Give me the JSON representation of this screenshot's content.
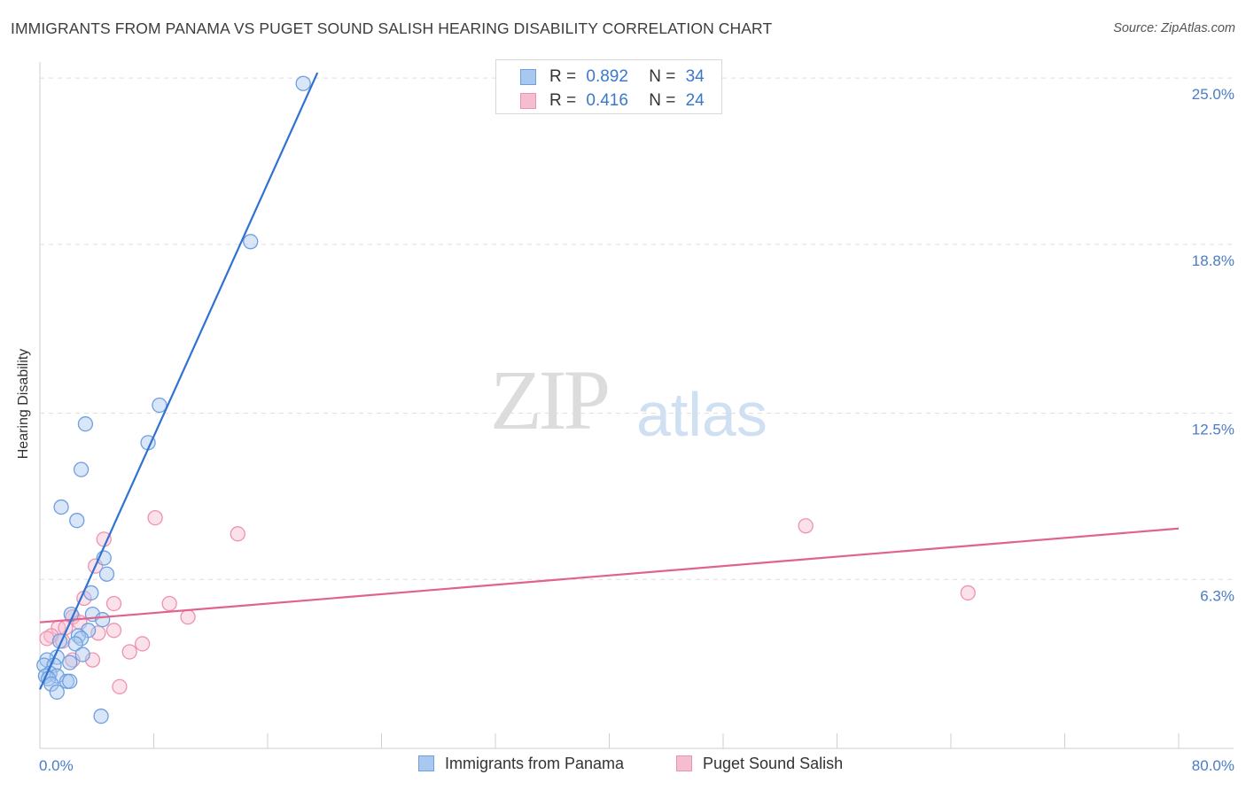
{
  "header": {
    "title": "IMMIGRANTS FROM PANAMA VS PUGET SOUND SALISH HEARING DISABILITY CORRELATION CHART",
    "source": "Source: ZipAtlas.com"
  },
  "watermark": {
    "zip": "ZIP",
    "atlas": "atlas"
  },
  "legend": {
    "rows": [
      {
        "r_label": "R =",
        "r_value": "0.892",
        "n_label": "N =",
        "n_value": "34"
      },
      {
        "r_label": "R =",
        "r_value": "0.416",
        "n_label": "N =",
        "n_value": "24"
      }
    ]
  },
  "colors": {
    "series1_fill": "#a9c8f0",
    "series1_stroke": "#6f9fe0",
    "series1_line": "#2f72d0",
    "series2_fill": "#f6bdd0",
    "series2_stroke": "#ee92b2",
    "series2_line": "#e2628e",
    "tick_text": "#4a7cc7"
  },
  "chart_data": {
    "type": "scatter",
    "title": "IMMIGRANTS FROM PANAMA VS PUGET SOUND SALISH HEARING DISABILITY CORRELATION CHART",
    "xlabel": "",
    "ylabel": "Hearing Disability",
    "xlim": [
      0,
      80
    ],
    "ylim": [
      0,
      25.6
    ],
    "x_tick_labels": [
      "0.0%",
      "80.0%"
    ],
    "y_ticks": [
      6.3,
      12.5,
      18.8,
      25.0
    ],
    "y_tick_labels": [
      "6.3%",
      "12.5%",
      "18.8%",
      "25.0%"
    ],
    "grid": "horizontal dashed",
    "legend_position": "top-center",
    "series": [
      {
        "name": "Immigrants from Panama",
        "r": 0.892,
        "n": 34,
        "trend": {
          "x": [
            0,
            19.5
          ],
          "y": [
            2.2,
            25.2
          ]
        },
        "points": [
          [
            18.5,
            24.8
          ],
          [
            14.8,
            18.9
          ],
          [
            8.4,
            12.8
          ],
          [
            7.6,
            11.4
          ],
          [
            3.2,
            12.1
          ],
          [
            2.9,
            10.4
          ],
          [
            1.5,
            9.0
          ],
          [
            2.6,
            8.5
          ],
          [
            4.5,
            7.1
          ],
          [
            4.7,
            6.5
          ],
          [
            3.6,
            5.8
          ],
          [
            3.7,
            5.0
          ],
          [
            2.2,
            5.0
          ],
          [
            4.4,
            4.8
          ],
          [
            3.4,
            4.4
          ],
          [
            2.7,
            4.2
          ],
          [
            2.9,
            4.1
          ],
          [
            1.4,
            4.0
          ],
          [
            2.5,
            3.9
          ],
          [
            3.0,
            3.5
          ],
          [
            1.2,
            3.4
          ],
          [
            0.5,
            3.3
          ],
          [
            2.1,
            3.2
          ],
          [
            0.3,
            3.1
          ],
          [
            1.0,
            3.1
          ],
          [
            0.7,
            2.8
          ],
          [
            0.4,
            2.7
          ],
          [
            1.2,
            2.7
          ],
          [
            0.6,
            2.6
          ],
          [
            1.9,
            2.5
          ],
          [
            2.1,
            2.5
          ],
          [
            0.8,
            2.4
          ],
          [
            1.2,
            2.1
          ],
          [
            4.3,
            1.2
          ]
        ]
      },
      {
        "name": "Puget Sound Salish",
        "r": 0.416,
        "n": 24,
        "trend": {
          "x": [
            0,
            80
          ],
          "y": [
            4.7,
            8.2
          ]
        },
        "points": [
          [
            53.8,
            8.3
          ],
          [
            8.1,
            8.6
          ],
          [
            13.9,
            8.0
          ],
          [
            4.5,
            7.8
          ],
          [
            3.9,
            6.8
          ],
          [
            65.2,
            5.8
          ],
          [
            3.1,
            5.6
          ],
          [
            5.2,
            5.4
          ],
          [
            9.1,
            5.4
          ],
          [
            2.3,
            4.9
          ],
          [
            10.4,
            4.9
          ],
          [
            2.8,
            4.7
          ],
          [
            1.3,
            4.5
          ],
          [
            1.8,
            4.5
          ],
          [
            5.2,
            4.4
          ],
          [
            4.1,
            4.3
          ],
          [
            0.8,
            4.2
          ],
          [
            0.5,
            4.1
          ],
          [
            1.6,
            4.0
          ],
          [
            7.2,
            3.9
          ],
          [
            6.3,
            3.6
          ],
          [
            2.3,
            3.3
          ],
          [
            3.7,
            3.3
          ],
          [
            5.6,
            2.3
          ]
        ]
      }
    ]
  }
}
